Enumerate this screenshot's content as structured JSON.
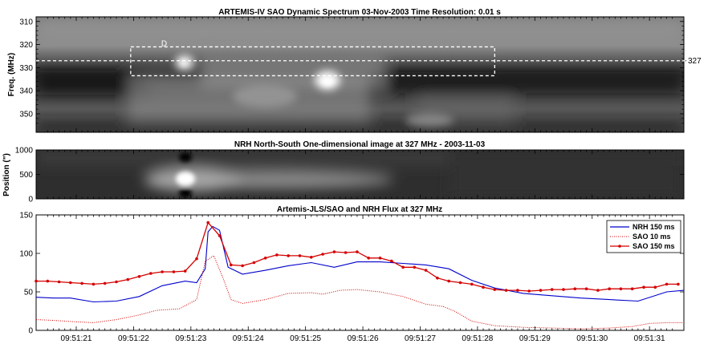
{
  "chart_data": [
    {
      "type": "heatmap",
      "title": "ARTEMIS-IV  SAO Dynamic Spectrum 03-Nov-2003 Time Resolution: 0.01 s",
      "ylabel": "Freq. (MHz)",
      "ylim": [
        358,
        308
      ],
      "y_ticks": [
        "310",
        "320",
        "330",
        "340",
        "350"
      ],
      "reference_line": {
        "label": "327",
        "value": 327
      },
      "box_label": "D",
      "box": {
        "t0": 1.65,
        "t1": 8.0,
        "f0": 321,
        "f1": 333.5
      }
    },
    {
      "type": "heatmap",
      "title": "NRH North-South One-dimensional image at 327 MHz  -  2003-11-03",
      "ylabel": "Position (\")",
      "ylim": [
        0,
        1000
      ],
      "y_ticks": [
        "0",
        "500",
        "1000"
      ]
    },
    {
      "type": "line",
      "title": "Artemis-JLS/SAO and NRH Flux at 327 MHz",
      "ylim": [
        0,
        150
      ],
      "y_ticks": [
        "0",
        "50",
        "100",
        "150"
      ],
      "x_ticks": [
        "09:51:21",
        "09:51:22",
        "09:51:23",
        "09:51:24",
        "09:51:25",
        "09:51:26",
        "09:51:27",
        "09:51:28",
        "09:51:29",
        "09:51:30",
        "09:51:31"
      ],
      "xlim": [
        "09:51:20.3",
        "09:51:31.6"
      ],
      "legend_position": "top-right",
      "series": [
        {
          "name": "NRH 150 ms",
          "color": "#0000cc",
          "style": "solid",
          "x": [
            0.0,
            0.3,
            0.6,
            1.0,
            1.4,
            1.8,
            2.2,
            2.6,
            2.8,
            2.95,
            3.0,
            3.08,
            3.2,
            3.35,
            3.6,
            4.0,
            4.4,
            4.8,
            5.2,
            5.6,
            6.0,
            6.4,
            6.8,
            7.2,
            7.6,
            8.0,
            8.5,
            9.0,
            9.5,
            10.0,
            10.5,
            11.0,
            11.3
          ],
          "y": [
            43,
            42,
            42,
            37,
            38,
            44,
            58,
            64,
            62,
            80,
            128,
            135,
            130,
            82,
            73,
            78,
            84,
            88,
            82,
            89,
            89,
            87,
            85,
            80,
            65,
            55,
            48,
            45,
            42,
            40,
            38,
            50,
            52
          ]
        },
        {
          "name": "SAO 10 ms",
          "color": "#d40000",
          "style": "dotted",
          "x": [
            0.0,
            0.3,
            0.7,
            1.0,
            1.4,
            1.8,
            2.1,
            2.5,
            2.8,
            2.95,
            3.1,
            3.25,
            3.4,
            3.6,
            4.0,
            4.4,
            4.8,
            5.0,
            5.3,
            5.6,
            6.0,
            6.4,
            6.8,
            7.1,
            7.3,
            7.6,
            8.0,
            8.5,
            9.0,
            9.5,
            10.0,
            10.4,
            10.7,
            11.0,
            11.3
          ],
          "y": [
            14,
            13,
            11,
            10,
            14,
            20,
            26,
            28,
            40,
            90,
            97,
            70,
            40,
            35,
            40,
            48,
            49,
            47,
            52,
            53,
            50,
            44,
            34,
            31,
            25,
            12,
            6,
            4,
            3,
            2,
            3,
            5,
            9,
            10,
            10
          ]
        },
        {
          "name": "SAO 150 ms",
          "color": "#d40000",
          "style": "markers",
          "x": [
            0.0,
            0.2,
            0.4,
            0.6,
            0.8,
            1.0,
            1.2,
            1.4,
            1.6,
            1.8,
            2.0,
            2.2,
            2.4,
            2.6,
            2.8,
            3.0,
            3.2,
            3.4,
            3.6,
            3.8,
            4.0,
            4.2,
            4.4,
            4.6,
            4.8,
            5.0,
            5.2,
            5.4,
            5.6,
            5.8,
            6.0,
            6.2,
            6.4,
            6.6,
            6.8,
            7.0,
            7.2,
            7.4,
            7.6,
            7.8,
            8.0,
            8.2,
            8.4,
            8.6,
            8.8,
            9.0,
            9.2,
            9.4,
            9.6,
            9.8,
            10.0,
            10.2,
            10.4,
            10.6,
            10.8,
            11.0,
            11.2
          ],
          "y": [
            64,
            64,
            63,
            62,
            61,
            60,
            61,
            63,
            66,
            70,
            74,
            76,
            76,
            77,
            93,
            140,
            123,
            85,
            84,
            88,
            94,
            98,
            97,
            97,
            95,
            99,
            102,
            101,
            102,
            94,
            94,
            90,
            82,
            82,
            78,
            68,
            64,
            62,
            60,
            56,
            53,
            52,
            52,
            51,
            52,
            53,
            53,
            54,
            54,
            52,
            54,
            54,
            54,
            56,
            56,
            60,
            60
          ]
        }
      ]
    }
  ]
}
